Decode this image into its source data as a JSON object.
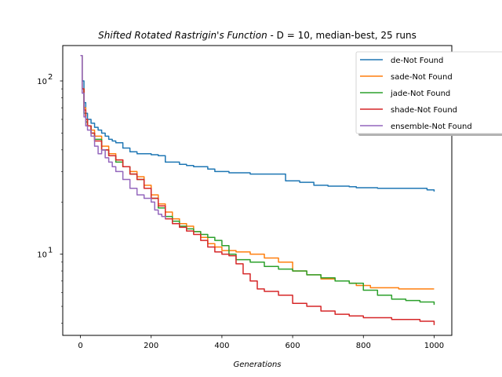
{
  "chart_data": {
    "type": "line",
    "title_function": "Shifted Rotated Rastrigin's Function",
    "title_rest": " - D = 10, median-best, 25 runs",
    "xlabel": "Generations",
    "ylabel": "",
    "xlim": [
      -50,
      1050
    ],
    "ylim": [
      3.4,
      160
    ],
    "y_scale": "log",
    "x_ticks": [
      0,
      200,
      400,
      600,
      800,
      1000
    ],
    "y_major_ticks": [
      10,
      100
    ],
    "y_tick_labels": [
      "10",
      "10"
    ],
    "y_tick_exponents": [
      "1",
      "2"
    ],
    "grid": false,
    "legend_position": "top-right",
    "series": [
      {
        "name": "de-Not Found",
        "color": "#1f77b4",
        "x": [
          0,
          5,
          10,
          15,
          20,
          30,
          40,
          50,
          60,
          70,
          80,
          90,
          100,
          120,
          140,
          160,
          180,
          200,
          220,
          240,
          280,
          300,
          320,
          360,
          380,
          420,
          480,
          500,
          560,
          580,
          620,
          660,
          700,
          760,
          780,
          840,
          880,
          940,
          960,
          980,
          1000
        ],
        "y": [
          140,
          100,
          75,
          65,
          60,
          57,
          54,
          52,
          50,
          48,
          46,
          45,
          44,
          41,
          39,
          38,
          38,
          37.5,
          37,
          34,
          33,
          32.5,
          32,
          31,
          30,
          29.5,
          29,
          29,
          29,
          26.5,
          26,
          25,
          24.7,
          24.5,
          24.2,
          24,
          24,
          24,
          24,
          23.5,
          23
        ]
      },
      {
        "name": "sade-Not Found",
        "color": "#ff7f0e",
        "x": [
          0,
          5,
          10,
          15,
          20,
          30,
          40,
          60,
          80,
          100,
          120,
          140,
          160,
          180,
          200,
          220,
          240,
          260,
          280,
          300,
          320,
          340,
          360,
          380,
          400,
          440,
          480,
          520,
          560,
          600,
          640,
          680,
          720,
          760,
          780,
          820,
          860,
          900,
          940,
          980,
          1000
        ],
        "y": [
          140,
          90,
          70,
          60,
          55,
          52,
          48,
          42,
          38,
          35,
          32,
          30,
          28,
          25,
          22,
          19.5,
          17.5,
          16,
          15,
          14.5,
          13.5,
          12.5,
          11.5,
          11,
          10.5,
          10.3,
          10,
          9.5,
          9,
          8,
          7.6,
          7.2,
          7,
          6.8,
          6.6,
          6.4,
          6.4,
          6.3,
          6.3,
          6.3,
          6.3
        ]
      },
      {
        "name": "jade-Not Found",
        "color": "#2ca02c",
        "x": [
          0,
          5,
          10,
          15,
          20,
          30,
          40,
          60,
          80,
          100,
          120,
          140,
          160,
          180,
          200,
          220,
          240,
          260,
          280,
          300,
          320,
          340,
          360,
          380,
          400,
          420,
          440,
          480,
          520,
          560,
          600,
          640,
          680,
          720,
          760,
          800,
          840,
          880,
          920,
          960,
          1000
        ],
        "y": [
          140,
          90,
          65,
          58,
          55,
          50,
          46,
          40,
          37,
          34,
          32,
          29,
          27,
          24,
          21,
          18.5,
          16.5,
          15.5,
          14.5,
          14,
          13.5,
          13,
          12.5,
          12,
          11.2,
          10,
          9.3,
          9,
          8.5,
          8.2,
          8,
          7.6,
          7.3,
          7,
          6.8,
          6.2,
          5.8,
          5.5,
          5.4,
          5.3,
          5.1
        ]
      },
      {
        "name": "shade-Not Found",
        "color": "#d62728",
        "x": [
          0,
          5,
          10,
          15,
          20,
          30,
          40,
          60,
          80,
          100,
          120,
          140,
          160,
          180,
          200,
          220,
          240,
          260,
          280,
          300,
          320,
          340,
          360,
          380,
          400,
          420,
          440,
          460,
          480,
          500,
          520,
          560,
          600,
          640,
          680,
          720,
          760,
          800,
          880,
          960,
          1000
        ],
        "y": [
          140,
          90,
          68,
          60,
          55,
          50,
          45,
          40,
          37,
          35,
          32,
          29,
          27,
          24,
          21,
          19,
          16,
          15,
          14.3,
          13.6,
          13,
          12,
          11,
          10.3,
          10,
          9.8,
          8.8,
          7.7,
          7,
          6.3,
          6.1,
          5.8,
          5.2,
          5,
          4.7,
          4.5,
          4.4,
          4.3,
          4.2,
          4.1,
          3.9
        ]
      },
      {
        "name": "ensemble-Not Found",
        "color": "#9467bd",
        "x": [
          0,
          5,
          10,
          15,
          20,
          30,
          40,
          50,
          60,
          70,
          80,
          90,
          100,
          120,
          140,
          160,
          180,
          200,
          210,
          220,
          230,
          240
        ],
        "y": [
          140,
          85,
          62,
          55,
          52,
          48,
          42,
          38,
          40,
          36,
          34,
          32,
          30,
          27,
          24,
          22,
          21,
          20,
          18,
          17,
          16.5,
          16
        ]
      }
    ]
  }
}
